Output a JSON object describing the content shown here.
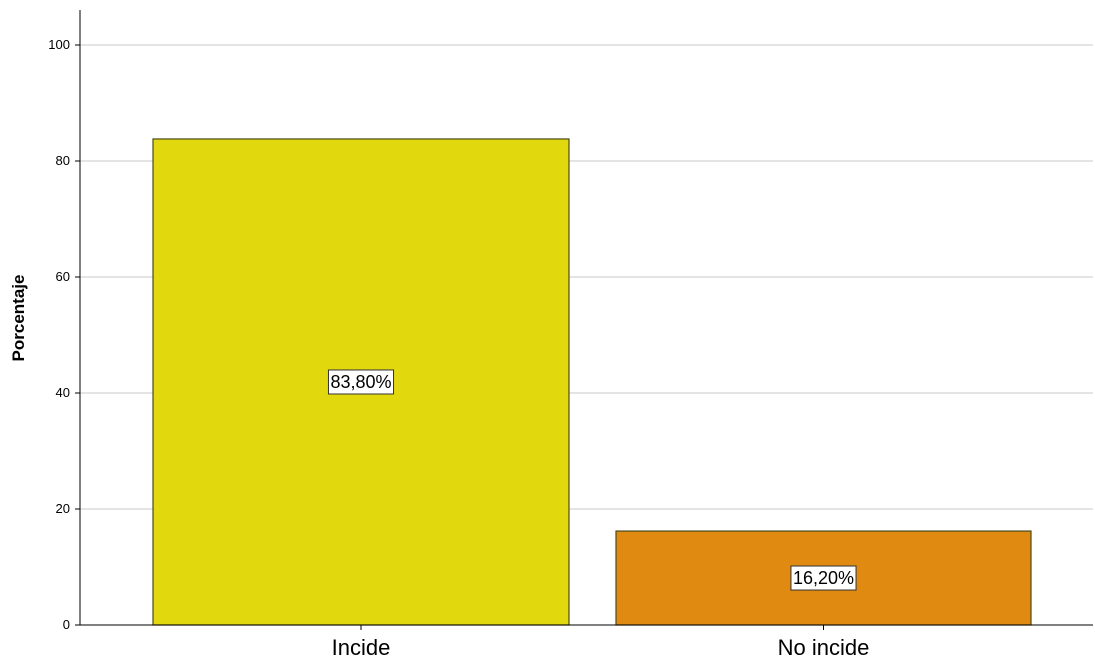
{
  "chart_data": {
    "type": "bar",
    "categories": [
      "Incide",
      "No incide"
    ],
    "values": [
      83.8,
      16.2
    ],
    "data_labels": [
      "83,80%",
      "16,20%"
    ],
    "bar_colors": [
      "#e2d80e",
      "#e08a12"
    ],
    "bar_stroke": "#4a4a1a",
    "title": "",
    "xlabel": "",
    "ylabel": "Porcentaje",
    "ylim": [
      0,
      100
    ],
    "yticks": [
      0,
      20,
      40,
      60,
      80,
      100
    ],
    "ytick_labels": [
      "0",
      "20",
      "40",
      "60",
      "80",
      "100"
    ],
    "grid": true,
    "grid_color": "#c8c8c8",
    "legend": false
  }
}
